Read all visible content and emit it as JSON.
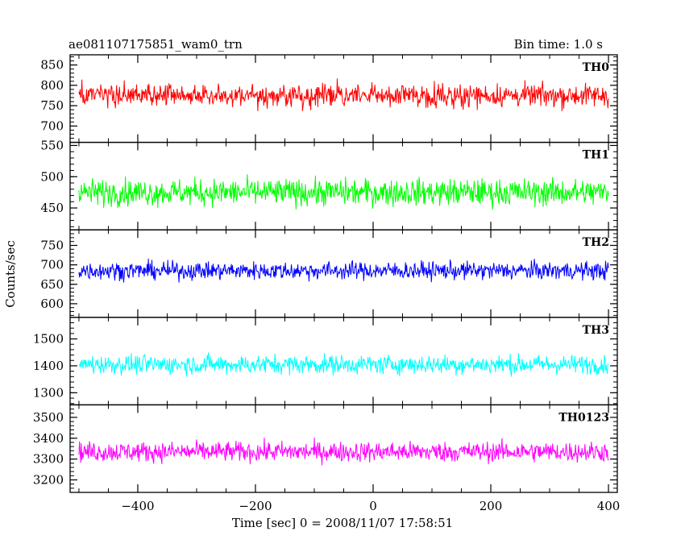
{
  "header": {
    "left_title": "ae081107175851_wam0_trn",
    "right_title": "Bin time: 1.0 s"
  },
  "chart_data": {
    "type": "line",
    "xlabel": "Time [sec] 0 = 2008/11/07 17:58:51",
    "ylabel": "Counts/sec",
    "xlim": [
      -515,
      415
    ],
    "x_ticks": [
      -400,
      -200,
      0,
      200,
      400
    ],
    "x_tick_labels": [
      "−400",
      "−200",
      "0",
      "200",
      "400"
    ],
    "x_range": [
      -500,
      400
    ],
    "bin_time": 1.0,
    "grid": false,
    "panels": [
      {
        "name": "TH0",
        "color": "#ff0000",
        "ylim": [
          660,
          875
        ],
        "y_ticks": [
          700,
          750,
          800,
          850
        ],
        "y_tick_labels": [
          "700",
          "750",
          "800",
          "850"
        ],
        "mean": 775,
        "noise": 55
      },
      {
        "name": "TH1",
        "color": "#00ff00",
        "ylim": [
          415,
          555
        ],
        "y_ticks": [
          450,
          500,
          550
        ],
        "y_tick_labels": [
          "450",
          "500",
          "550"
        ],
        "mean": 475,
        "noise": 42
      },
      {
        "name": "TH2",
        "color": "#0000ff",
        "ylim": [
          565,
          790
        ],
        "y_ticks": [
          600,
          650,
          700,
          750
        ],
        "y_tick_labels": [
          "600",
          "650",
          "700",
          "750"
        ],
        "mean": 685,
        "noise": 45
      },
      {
        "name": "TH3",
        "color": "#00ffff",
        "ylim": [
          1255,
          1580
        ],
        "y_ticks": [
          1300,
          1400,
          1500
        ],
        "y_tick_labels": [
          "1300",
          "1400",
          "1500"
        ],
        "mean": 1405,
        "noise": 70
      },
      {
        "name": "TH0123",
        "color": "#ff00ff",
        "ylim": [
          3140,
          3560
        ],
        "y_ticks": [
          3200,
          3300,
          3400,
          3500
        ],
        "y_tick_labels": [
          "3200",
          "3300",
          "3400",
          "3500"
        ],
        "mean": 3335,
        "noise": 95
      }
    ]
  }
}
